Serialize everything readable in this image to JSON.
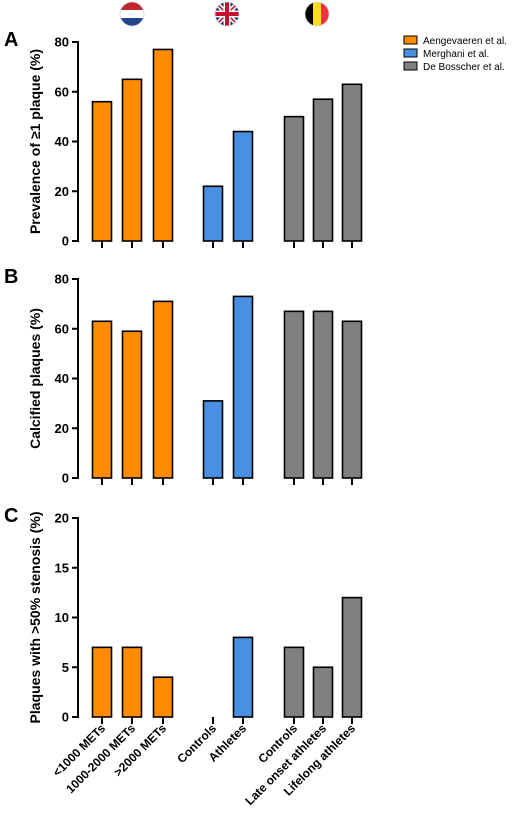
{
  "colors": {
    "netherlands": "#ff8c00",
    "uk": "#4a90e2",
    "belgium": "#808080",
    "axis": "#000000"
  },
  "legend": [
    {
      "label": "Aengevaeren et al.",
      "color": "#ff8c00"
    },
    {
      "label": "Merghani et al.",
      "color": "#4a90e2"
    },
    {
      "label": "De Bosscher et al.",
      "color": "#808080"
    }
  ],
  "flags": [
    {
      "name": "netherlands-flag-icon",
      "stripes": [
        "#c1272d",
        "#ffffff",
        "#21468b"
      ],
      "orientation": "horizontal"
    },
    {
      "name": "uk-flag-icon",
      "orientation": "union"
    },
    {
      "name": "belgium-flag-icon",
      "stripes": [
        "#000000",
        "#fdda24",
        "#ef3340"
      ],
      "orientation": "vertical"
    }
  ],
  "chart_data": [
    {
      "type": "bar",
      "panel": "A",
      "ylabel": "Prevalence of ≥1 plaque (%)",
      "ylim": [
        0,
        80
      ],
      "yticks": [
        0,
        20,
        40,
        60,
        80
      ],
      "categories": [
        "<1000 METs",
        "1000-2000 METs",
        ">2000 METs",
        "Controls",
        "Athletes",
        "Controls",
        "Late onset athletes",
        "Lifelong athletes"
      ],
      "groups": [
        0,
        0,
        0,
        1,
        1,
        2,
        2,
        2
      ],
      "values": [
        56,
        65,
        77,
        22,
        44,
        50,
        57,
        63
      ]
    },
    {
      "type": "bar",
      "panel": "B",
      "ylabel": "Calcified plaques (%)",
      "ylim": [
        0,
        80
      ],
      "yticks": [
        0,
        20,
        40,
        60,
        80
      ],
      "categories": [
        "<1000 METs",
        "1000-2000 METs",
        ">2000 METs",
        "Controls",
        "Athletes",
        "Controls",
        "Late onset athletes",
        "Lifelong athletes"
      ],
      "groups": [
        0,
        0,
        0,
        1,
        1,
        2,
        2,
        2
      ],
      "values": [
        63,
        59,
        71,
        31,
        73,
        67,
        67,
        63
      ]
    },
    {
      "type": "bar",
      "panel": "C",
      "ylabel": "Plaques with >50% stenosis (%)",
      "ylim": [
        0,
        20
      ],
      "yticks": [
        0,
        5,
        10,
        15,
        20
      ],
      "categories": [
        "<1000 METs",
        "1000-2000 METs",
        ">2000 METs",
        "Controls",
        "Athletes",
        "Controls",
        "Late onset athletes",
        "Lifelong athletes"
      ],
      "groups": [
        0,
        0,
        0,
        1,
        1,
        2,
        2,
        2
      ],
      "values": [
        7,
        7,
        4,
        0,
        8,
        7,
        5,
        12
      ]
    }
  ]
}
